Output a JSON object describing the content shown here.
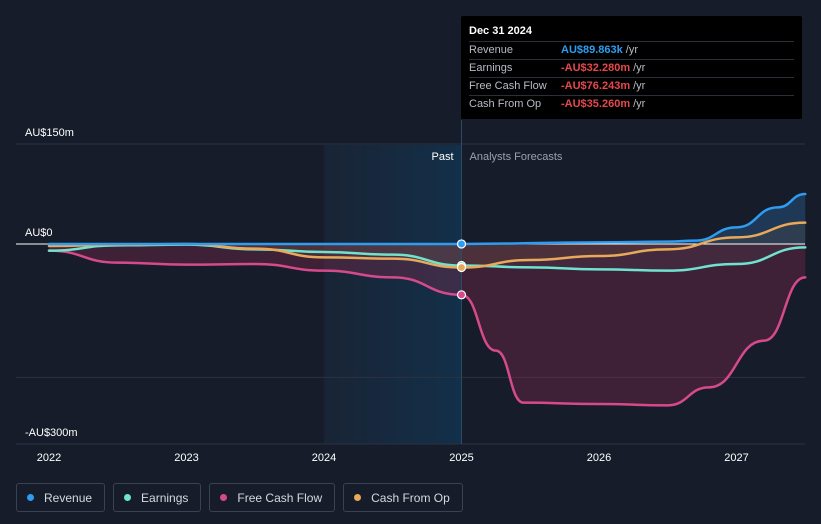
{
  "chart_data": {
    "type": "line",
    "x_ticks": [
      "2022",
      "2023",
      "2024",
      "2025",
      "2026",
      "2027"
    ],
    "y_tick_labels": [
      "AU$150m",
      "AU$0",
      "-AU$300m"
    ],
    "region_labels": {
      "past": "Past",
      "forecast": "Analysts Forecasts"
    },
    "series": [
      {
        "name": "Revenue",
        "color": "#2e9cf0",
        "points": [
          [
            2022.0,
            0.0
          ],
          [
            2023.0,
            0.0
          ],
          [
            2024.0,
            0.0
          ],
          [
            2025.0,
            0.09
          ],
          [
            2026.0,
            2.5
          ],
          [
            2026.5,
            3.5
          ],
          [
            2026.7,
            5
          ],
          [
            2027.0,
            25
          ],
          [
            2027.3,
            55
          ],
          [
            2027.5,
            75
          ]
        ]
      },
      {
        "name": "Earnings",
        "color": "#6fe3cf",
        "points": [
          [
            2022.0,
            -10
          ],
          [
            2022.5,
            -2
          ],
          [
            2023.0,
            -1
          ],
          [
            2023.5,
            -8
          ],
          [
            2024.0,
            -12
          ],
          [
            2024.5,
            -16
          ],
          [
            2025.0,
            -32.28
          ],
          [
            2025.5,
            -35
          ],
          [
            2026.0,
            -38
          ],
          [
            2026.5,
            -40
          ],
          [
            2027.0,
            -30
          ],
          [
            2027.5,
            -5
          ]
        ]
      },
      {
        "name": "Free Cash Flow",
        "color": "#d64a8c",
        "points": [
          [
            2022.0,
            -10
          ],
          [
            2022.5,
            -28
          ],
          [
            2023.0,
            -31
          ],
          [
            2023.5,
            -30
          ],
          [
            2024.0,
            -40
          ],
          [
            2024.5,
            -50
          ],
          [
            2025.0,
            -76.243
          ],
          [
            2025.25,
            -160
          ],
          [
            2025.45,
            -238
          ],
          [
            2026.0,
            -240
          ],
          [
            2026.5,
            -242
          ],
          [
            2026.8,
            -215
          ],
          [
            2027.2,
            -145
          ],
          [
            2027.5,
            -50
          ]
        ]
      },
      {
        "name": "Cash From Op",
        "color": "#e8a95a",
        "points": [
          [
            2022.0,
            -3
          ],
          [
            2022.5,
            -1
          ],
          [
            2023.0,
            0
          ],
          [
            2023.5,
            -7
          ],
          [
            2024.0,
            -20
          ],
          [
            2024.5,
            -22
          ],
          [
            2025.0,
            -35.26
          ],
          [
            2025.5,
            -24
          ],
          [
            2026.0,
            -18
          ],
          [
            2026.5,
            -8
          ],
          [
            2027.0,
            10
          ],
          [
            2027.5,
            32
          ]
        ]
      }
    ],
    "ylim": [
      -300,
      150
    ],
    "xlim": [
      2021.75,
      2027.5
    ],
    "divider_x": 2025.0,
    "past_band_start": 2024.0,
    "grid": true,
    "legend_placement": "bottom-left"
  },
  "tooltip": {
    "date": "Dec 31 2024",
    "rows": [
      {
        "label": "Revenue",
        "value": "AU$89.863k",
        "unit": "/yr",
        "color": "#2e9cf0"
      },
      {
        "label": "Earnings",
        "value": "-AU$32.280m",
        "unit": "/yr",
        "color": "#e5484d"
      },
      {
        "label": "Free Cash Flow",
        "value": "-AU$76.243m",
        "unit": "/yr",
        "color": "#e5484d"
      },
      {
        "label": "Cash From Op",
        "value": "-AU$35.260m",
        "unit": "/yr",
        "color": "#e5484d"
      }
    ]
  },
  "legend": [
    {
      "label": "Revenue",
      "color": "#2e9cf0"
    },
    {
      "label": "Earnings",
      "color": "#6fe3cf"
    },
    {
      "label": "Free Cash Flow",
      "color": "#d64a8c"
    },
    {
      "label": "Cash From Op",
      "color": "#e8a95a"
    }
  ]
}
